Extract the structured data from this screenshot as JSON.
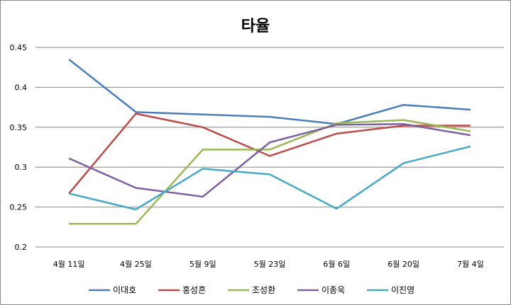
{
  "chart_data": {
    "type": "line",
    "title": "타율",
    "xlabel": "",
    "ylabel": "",
    "categories": [
      "4월 11일",
      "4월 25일",
      "5월 9일",
      "5월 23일",
      "6월 6일",
      "6월 20일",
      "7월 4일"
    ],
    "ylim": [
      0.2,
      0.45
    ],
    "yticks": [
      "0.2",
      "0.25",
      "0.3",
      "0.35",
      "0.4",
      "0.45"
    ],
    "grid": true,
    "legend_position": "bottom",
    "series": [
      {
        "name": "이대호",
        "color": "#4a7ebb",
        "values": [
          0.435,
          0.369,
          0.366,
          0.363,
          0.354,
          0.378,
          0.372
        ]
      },
      {
        "name": "홍성흔",
        "color": "#be4b48",
        "values": [
          0.267,
          0.367,
          0.35,
          0.314,
          0.342,
          0.352,
          0.352
        ]
      },
      {
        "name": "조성환",
        "color": "#98b954",
        "values": [
          0.229,
          0.229,
          0.322,
          0.322,
          0.355,
          0.359,
          0.345
        ]
      },
      {
        "name": "이종욱",
        "color": "#7d60a0",
        "values": [
          0.311,
          0.274,
          0.263,
          0.331,
          0.353,
          0.354,
          0.34
        ]
      },
      {
        "name": "이진영",
        "color": "#46aac5",
        "values": [
          0.267,
          0.247,
          0.298,
          0.291,
          0.248,
          0.305,
          0.326
        ]
      }
    ]
  }
}
